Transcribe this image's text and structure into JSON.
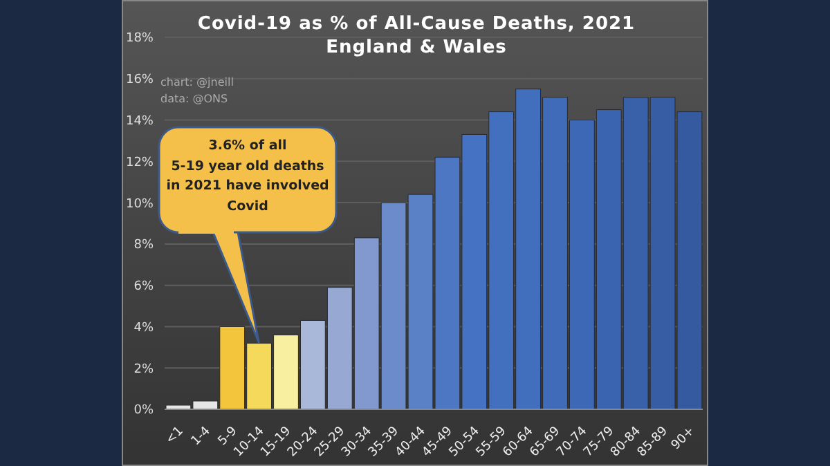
{
  "chart_data": {
    "type": "bar",
    "title": "Covid-19 as % of All-Cause Deaths, 2021",
    "subtitle": "England & Wales",
    "categories": [
      "<1",
      "1-4",
      "5-9",
      "10-14",
      "15-19",
      "20-24",
      "25-29",
      "30-34",
      "35-39",
      "40-44",
      "45-49",
      "50-54",
      "55-59",
      "60-64",
      "65-69",
      "70-74",
      "75-79",
      "80-84",
      "85-89",
      "90+"
    ],
    "values": [
      0.2,
      0.4,
      4.0,
      3.2,
      3.6,
      4.3,
      5.9,
      8.3,
      10.0,
      10.4,
      12.2,
      13.3,
      14.4,
      15.5,
      15.1,
      14.0,
      14.5,
      15.1,
      15.1,
      14.4
    ],
    "colors": [
      "#e6e6e6",
      "#e6e6e6",
      "#f2c53d",
      "#f5d95a",
      "#f8f0a0",
      "#a9b7d8",
      "#97a9d3",
      "#8199cf",
      "#6c8bcb",
      "#5a80c6",
      "#4d77c2",
      "#4572c2",
      "#4270bf",
      "#416ebd",
      "#3f6bb9",
      "#3d68b5",
      "#3b64b0",
      "#3961aa",
      "#375ea5",
      "#355a9f"
    ],
    "ylim": [
      0,
      18
    ],
    "yticks": [
      {
        "value": 0,
        "label": "0%"
      },
      {
        "value": 2,
        "label": "2%"
      },
      {
        "value": 4,
        "label": "4%"
      },
      {
        "value": 6,
        "label": "6%"
      },
      {
        "value": 8,
        "label": "8%"
      },
      {
        "value": 10,
        "label": "10%"
      },
      {
        "value": 12,
        "label": "12%"
      },
      {
        "value": 14,
        "label": "14%"
      },
      {
        "value": 16,
        "label": "16%"
      },
      {
        "value": 18,
        "label": "18%"
      }
    ],
    "grid": "y",
    "annotations": [
      "chart: @jneill",
      "data: @ONS",
      "3.6% of all\n5-19 year old deaths\nin 2021 have involved\nCovid"
    ]
  }
}
